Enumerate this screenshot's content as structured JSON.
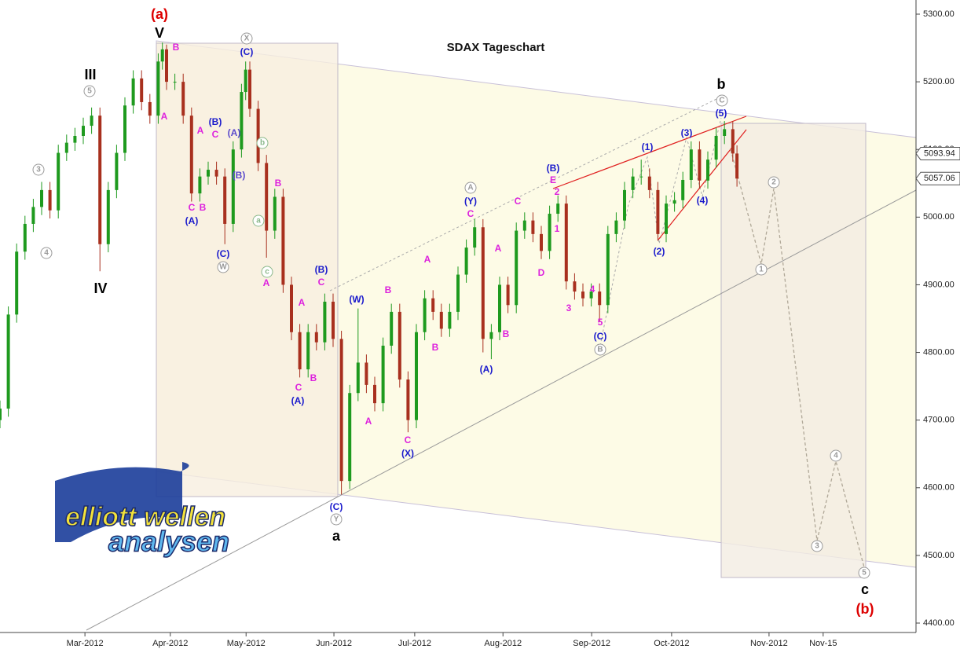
{
  "chart_data": {
    "type": "candlestick",
    "title": "SDAX Tageschart",
    "up_color": "#1e9a1e",
    "down_color": "#a8301e",
    "xlim": [
      0,
      220
    ],
    "ylim": [
      4400,
      5300
    ],
    "yticks": [
      {
        "value": 4400,
        "label": "4400.00"
      },
      {
        "value": 4500,
        "label": "4500.00"
      },
      {
        "value": 4600,
        "label": "4600.00"
      },
      {
        "value": 4700,
        "label": "4700.00"
      },
      {
        "value": 4800,
        "label": "4800.00"
      },
      {
        "value": 4900,
        "label": "4900.00"
      },
      {
        "value": 5000,
        "label": "5000.00"
      },
      {
        "value": 5100,
        "label": "5100.00"
      },
      {
        "value": 5200,
        "label": "5200.00"
      },
      {
        "value": 5300,
        "label": "5300.00"
      }
    ],
    "xticks": [
      {
        "value": 20.4,
        "label": "Mar-2012"
      },
      {
        "value": 40.9,
        "label": "Apr-2012"
      },
      {
        "value": 59.1,
        "label": "May-2012"
      },
      {
        "value": 80.2,
        "label": "Jun-2012"
      },
      {
        "value": 99.6,
        "label": "Jul-2012"
      },
      {
        "value": 120.8,
        "label": "Aug-2012"
      },
      {
        "value": 142.1,
        "label": "Sep-2012"
      },
      {
        "value": 161.3,
        "label": "Oct-2012"
      },
      {
        "value": 184.7,
        "label": "Nov-2012"
      },
      {
        "value": 197.7,
        "label": "Nov-15"
      }
    ],
    "x": [
      0,
      2,
      4,
      6,
      8,
      10,
      12,
      14,
      16,
      18,
      20,
      22,
      24,
      26,
      28,
      30,
      32,
      34,
      36,
      38,
      39,
      40,
      42,
      44,
      46,
      48,
      50,
      52,
      54,
      56,
      58,
      59,
      60,
      62,
      64,
      66,
      68,
      70,
      72,
      74,
      76,
      78,
      80,
      82,
      84,
      86,
      88,
      90,
      92,
      94,
      96,
      98,
      100,
      102,
      104,
      106,
      108,
      110,
      112,
      114,
      116,
      118,
      120,
      122,
      124,
      126,
      128,
      130,
      132,
      134,
      136,
      138,
      140,
      142,
      144,
      146,
      148,
      150,
      152,
      154,
      156,
      158,
      160,
      162,
      164,
      166,
      168,
      170,
      172,
      174,
      176,
      177
    ],
    "open": [
      4700,
      4717,
      4856,
      4949,
      4990,
      5015,
      5040,
      5010,
      5095,
      5110,
      5120,
      5135,
      5150,
      4960,
      5040,
      5095,
      5165,
      5205,
      5170,
      5150,
      5230,
      5248,
      5200,
      5200,
      5150,
      5035,
      5060,
      5070,
      5060,
      4990,
      5100,
      5185,
      5218,
      5160,
      5080,
      4980,
      5030,
      4900,
      4830,
      4775,
      4830,
      4815,
      4875,
      4820,
      4610,
      4740,
      4785,
      4752,
      4725,
      4810,
      4860,
      4760,
      4700,
      4830,
      4880,
      4860,
      4835,
      4860,
      4915,
      4955,
      4985,
      4820,
      4830,
      4900,
      4870,
      4980,
      4995,
      4975,
      4950,
      5005,
      5020,
      4905,
      4890,
      4880,
      4890,
      4870,
      4975,
      4995,
      5040,
      5060,
      5060,
      5040,
      4975,
      5020,
      5025,
      5055,
      5100,
      5054,
      5085,
      5120,
      5130,
      5094
    ],
    "high": [
      4729,
      4868,
      4961,
      5002,
      5027,
      5052,
      5052,
      5107,
      5122,
      5132,
      5147,
      5162,
      5162,
      5052,
      5107,
      5177,
      5217,
      5217,
      5182,
      5242,
      5258,
      5255,
      5212,
      5212,
      5162,
      5072,
      5082,
      5082,
      5072,
      5112,
      5197,
      5230,
      5230,
      5172,
      5092,
      5042,
      5042,
      4912,
      4842,
      4842,
      4842,
      4887,
      4887,
      4832,
      4752,
      4865,
      4797,
      4764,
      4822,
      4872,
      4872,
      4772,
      4842,
      4892,
      4892,
      4872,
      4872,
      4927,
      4967,
      4997,
      4997,
      4842,
      4912,
      4912,
      4992,
      5007,
      5007,
      4987,
      5017,
      5032,
      5032,
      4917,
      4902,
      4902,
      4902,
      4987,
      5007,
      5052,
      5072,
      5085,
      5072,
      5052,
      5032,
      5037,
      5067,
      5112,
      5112,
      5097,
      5132,
      5142,
      5142,
      5106
    ],
    "low": [
      4688,
      4705,
      4844,
      4937,
      4978,
      5003,
      4998,
      4998,
      5083,
      5098,
      5108,
      5123,
      4920,
      4948,
      5028,
      5083,
      5153,
      5158,
      5138,
      5138,
      5218,
      5188,
      5188,
      5138,
      5023,
      5023,
      5048,
      5048,
      4960,
      4978,
      5088,
      5173,
      5148,
      5068,
      4940,
      4968,
      4888,
      4818,
      4763,
      4763,
      4803,
      4803,
      4808,
      4590,
      4598,
      4728,
      4740,
      4713,
      4713,
      4798,
      4748,
      4682,
      4688,
      4818,
      4848,
      4823,
      4823,
      4848,
      4903,
      4943,
      4800,
      4790,
      4818,
      4858,
      4858,
      4968,
      4963,
      4938,
      4938,
      4993,
      4893,
      4878,
      4868,
      4868,
      4845,
      4858,
      4963,
      4983,
      5028,
      5048,
      5028,
      4965,
      4963,
      5008,
      5013,
      5043,
      5042,
      5042,
      5073,
      5108,
      5082,
      5045
    ],
    "close": [
      4717,
      4856,
      4949,
      4990,
      5015,
      5040,
      5010,
      5095,
      5110,
      5120,
      5135,
      5150,
      4960,
      5040,
      5095,
      5165,
      5205,
      5170,
      5150,
      5230,
      5248,
      5200,
      5200,
      5150,
      5035,
      5060,
      5070,
      5060,
      4990,
      5100,
      5185,
      5218,
      5160,
      5080,
      4980,
      5030,
      4900,
      4830,
      4775,
      4830,
      4815,
      4875,
      4820,
      4610,
      4740,
      4785,
      4752,
      4725,
      4810,
      4860,
      4760,
      4700,
      4830,
      4880,
      4860,
      4835,
      4860,
      4915,
      4955,
      4985,
      4820,
      4830,
      4900,
      4870,
      4980,
      4995,
      4975,
      4950,
      5005,
      5020,
      4905,
      4890,
      4880,
      4890,
      4870,
      4975,
      4995,
      5040,
      5060,
      5060,
      5040,
      4975,
      5020,
      5025,
      5055,
      5100,
      5054,
      5085,
      5120,
      5130,
      5094,
      5057
    ],
    "price_markers": [
      {
        "value": 5093.94,
        "label": "5093.94"
      },
      {
        "value": 5057.06,
        "label": "5057.06"
      }
    ],
    "annotations": [
      {
        "text": "(a)",
        "color": "#dd0000"
      },
      {
        "text": "V",
        "color": "#000000"
      },
      {
        "text": "III",
        "color": "#000000"
      },
      {
        "text": "5",
        "color": "#999999"
      },
      {
        "text": "IV",
        "color": "#000000"
      },
      {
        "text": "3",
        "color": "#999999"
      },
      {
        "text": "4",
        "color": "#999999"
      },
      {
        "text": "B",
        "color": "#dd22dd"
      },
      {
        "text": "A",
        "color": "#dd22dd"
      },
      {
        "text": "X",
        "color": "#999999"
      },
      {
        "text": "(C)",
        "color": "#1a1acc"
      },
      {
        "text": "(B)",
        "color": "#1a1acc"
      },
      {
        "text": "C",
        "color": "#dd22dd"
      },
      {
        "text": "A",
        "color": "#dd22dd"
      },
      {
        "text": "(A)",
        "color": "#5a4acc"
      },
      {
        "text": "B",
        "color": "#dd22dd"
      },
      {
        "text": "C",
        "color": "#dd22dd"
      },
      {
        "text": "(A)",
        "color": "#1a1acc"
      },
      {
        "text": "b",
        "color": "#8ab88a"
      },
      {
        "text": "(B)",
        "color": "#5a4acc"
      },
      {
        "text": "a",
        "color": "#8ab88a"
      },
      {
        "text": "(C)",
        "color": "#1a1acc"
      },
      {
        "text": "W",
        "color": "#999999"
      },
      {
        "text": "c",
        "color": "#8ab88a"
      },
      {
        "text": "A",
        "color": "#dd22dd"
      },
      {
        "text": "B",
        "color": "#dd22dd"
      },
      {
        "text": "A",
        "color": "#dd22dd"
      },
      {
        "text": "(B)",
        "color": "#1a1acc"
      },
      {
        "text": "C",
        "color": "#dd22dd"
      },
      {
        "text": "C",
        "color": "#dd22dd"
      },
      {
        "text": "B",
        "color": "#dd22dd"
      },
      {
        "text": "(A)",
        "color": "#1a1acc"
      },
      {
        "text": "(W)",
        "color": "#1a1acc"
      },
      {
        "text": "B",
        "color": "#dd22dd"
      },
      {
        "text": "A",
        "color": "#dd22dd"
      },
      {
        "text": "C",
        "color": "#dd22dd"
      },
      {
        "text": "(X)",
        "color": "#1a1acc"
      },
      {
        "text": "A",
        "color": "#dd22dd"
      },
      {
        "text": "B",
        "color": "#dd22dd"
      },
      {
        "text": "(C)",
        "color": "#1a1acc"
      },
      {
        "text": "Y",
        "color": "#999999"
      },
      {
        "text": "a",
        "color": "#000000"
      },
      {
        "text": "A",
        "color": "#999999"
      },
      {
        "text": "(Y)",
        "color": "#1a1acc"
      },
      {
        "text": "C",
        "color": "#dd22dd"
      },
      {
        "text": "C",
        "color": "#dd22dd"
      },
      {
        "text": "A",
        "color": "#dd22dd"
      },
      {
        "text": "D",
        "color": "#dd22dd"
      },
      {
        "text": "B",
        "color": "#dd22dd"
      },
      {
        "text": "(A)",
        "color": "#1a1acc"
      },
      {
        "text": "(B)",
        "color": "#1a1acc"
      },
      {
        "text": "E",
        "color": "#dd22dd"
      },
      {
        "text": "2",
        "color": "#dd22dd"
      },
      {
        "text": "1",
        "color": "#dd22dd"
      },
      {
        "text": "4",
        "color": "#dd22dd"
      },
      {
        "text": "3",
        "color": "#dd22dd"
      },
      {
        "text": "5",
        "color": "#dd22dd"
      },
      {
        "text": "(C)",
        "color": "#1a1acc"
      },
      {
        "text": "B",
        "color": "#999999"
      },
      {
        "text": "(1)",
        "color": "#1a1acc"
      },
      {
        "text": "(2)",
        "color": "#1a1acc"
      },
      {
        "text": "(3)",
        "color": "#1a1acc"
      },
      {
        "text": "(4)",
        "color": "#1a1acc"
      },
      {
        "text": "(5)",
        "color": "#1a1acc"
      },
      {
        "text": "C",
        "color": "#999999"
      },
      {
        "text": "b",
        "color": "#000000"
      },
      {
        "text": "2",
        "color": "#999999"
      },
      {
        "text": "1",
        "color": "#999999"
      },
      {
        "text": "3",
        "color": "#999999"
      },
      {
        "text": "4",
        "color": "#999999"
      },
      {
        "text": "5",
        "color": "#999999"
      },
      {
        "text": "c",
        "color": "#000000"
      },
      {
        "text": "(b)",
        "color": "#dd0000"
      }
    ]
  },
  "logo": {
    "line1": "elliott wellen",
    "line2": "analysen"
  }
}
